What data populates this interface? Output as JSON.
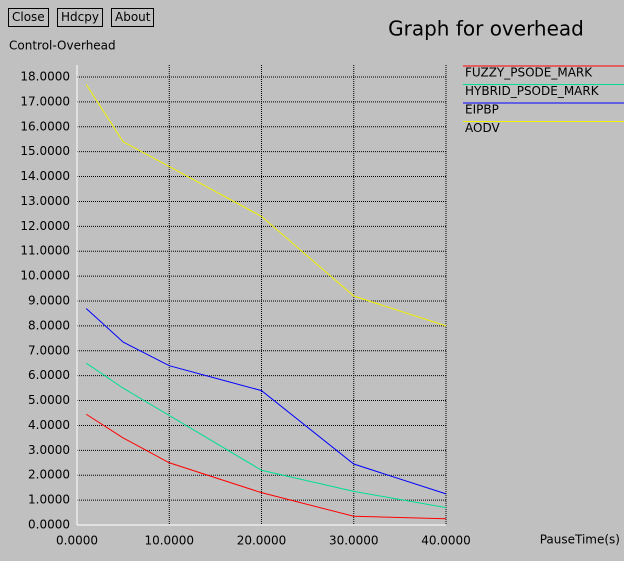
{
  "buttons": [
    "Close",
    "Hdcpy",
    "About"
  ],
  "chart_data": {
    "type": "line",
    "title": "Graph for overhead",
    "y_label": "Control-Overhead",
    "x_label": "PauseTime(s)",
    "x": [
      1,
      5,
      10,
      20,
      30,
      40
    ],
    "series": [
      {
        "name": "FUZZY_PSODE_MARK",
        "color": "#ff0000",
        "values": [
          4.45,
          3.5,
          2.5,
          1.3,
          0.35,
          0.25
        ]
      },
      {
        "name": "HYBRID_PSODE_MARK",
        "color": "#00e090",
        "values": [
          6.5,
          5.5,
          4.4,
          2.2,
          1.35,
          0.7
        ]
      },
      {
        "name": "EIPBP",
        "color": "#0000ff",
        "values": [
          8.7,
          7.35,
          6.4,
          5.4,
          2.45,
          1.25
        ]
      },
      {
        "name": "AODV",
        "color": "#f0f000",
        "values": [
          17.7,
          15.4,
          14.4,
          12.4,
          9.2,
          8.0
        ]
      }
    ],
    "xlim": [
      0,
      40
    ],
    "ylim": [
      0,
      18
    ],
    "xticks": [
      {
        "value": 0,
        "label": "0.0000"
      },
      {
        "value": 10,
        "label": "10.0000"
      },
      {
        "value": 20,
        "label": "20.0000"
      },
      {
        "value": 30,
        "label": "30.0000"
      },
      {
        "value": 40,
        "label": "40.0000"
      }
    ],
    "yticks": [
      {
        "value": 0,
        "label": "0.0000"
      },
      {
        "value": 1,
        "label": "1.0000"
      },
      {
        "value": 2,
        "label": "2.0000"
      },
      {
        "value": 3,
        "label": "3.0000"
      },
      {
        "value": 4,
        "label": "4.0000"
      },
      {
        "value": 5,
        "label": "5.0000"
      },
      {
        "value": 6,
        "label": "6.0000"
      },
      {
        "value": 7,
        "label": "7.0000"
      },
      {
        "value": 8,
        "label": "8.0000"
      },
      {
        "value": 9,
        "label": "9.0000"
      },
      {
        "value": 10,
        "label": "10.0000"
      },
      {
        "value": 11,
        "label": "11.0000"
      },
      {
        "value": 12,
        "label": "12.0000"
      },
      {
        "value": 13,
        "label": "13.0000"
      },
      {
        "value": 14,
        "label": "14.0000"
      },
      {
        "value": 15,
        "label": "15.0000"
      },
      {
        "value": 16,
        "label": "16.0000"
      },
      {
        "value": 17,
        "label": "17.0000"
      },
      {
        "value": 18,
        "label": "18.0000"
      }
    ],
    "grid": true
  }
}
